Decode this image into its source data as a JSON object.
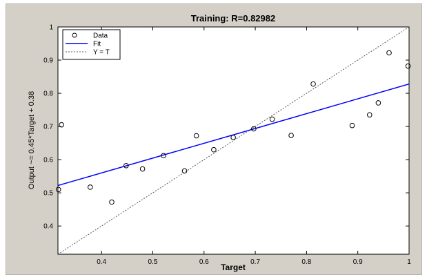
{
  "chart_data": {
    "type": "scatter",
    "title": "Training: R=0.82982",
    "xlabel": "Target",
    "ylabel": "Output ~= 0.45*Target + 0.38",
    "xlim": [
      0.315,
      1.0
    ],
    "ylim": [
      0.315,
      1.0
    ],
    "xticks": [
      0.4,
      0.5,
      0.6,
      0.7,
      0.8,
      0.9,
      1
    ],
    "yticks": [
      0.4,
      0.5,
      0.6,
      0.7,
      0.8,
      0.9,
      1
    ],
    "xtick_labels": [
      "0.4",
      "0.5",
      "0.6",
      "0.7",
      "0.8",
      "0.9",
      "1"
    ],
    "ytick_labels": [
      "0.4",
      "0.5",
      "0.6",
      "0.7",
      "0.8",
      "0.9",
      "1"
    ],
    "grid": false,
    "legend_position": "top-left",
    "series": [
      {
        "name": "Data",
        "marker": "circle",
        "color": "#000000",
        "x": [
          0.316,
          0.322,
          0.378,
          0.42,
          0.448,
          0.48,
          0.521,
          0.562,
          0.585,
          0.619,
          0.657,
          0.697,
          0.733,
          0.77,
          0.813,
          0.889,
          0.923,
          0.94,
          0.961,
          0.998
        ],
        "y": [
          0.51,
          0.705,
          0.517,
          0.472,
          0.582,
          0.572,
          0.612,
          0.566,
          0.672,
          0.63,
          0.667,
          0.693,
          0.722,
          0.673,
          0.828,
          0.703,
          0.735,
          0.771,
          0.922,
          0.882
        ]
      },
      {
        "name": "Fit",
        "style": "solid",
        "color": "#0000ff",
        "x": [
          0.315,
          1.0
        ],
        "y": [
          0.522,
          0.828
        ]
      },
      {
        "name": "Y = T",
        "style": "dotted",
        "color": "#555555",
        "x": [
          0.315,
          1.0
        ],
        "y": [
          0.315,
          1.0
        ]
      }
    ]
  }
}
